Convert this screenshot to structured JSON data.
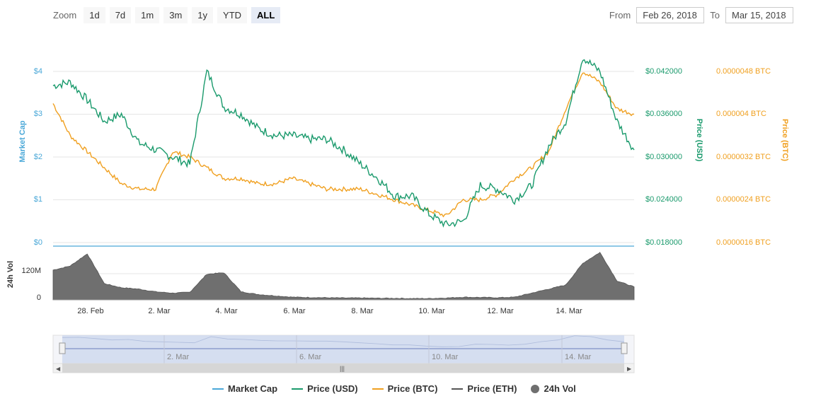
{
  "toolbar": {
    "zoom_label": "Zoom",
    "zoom_buttons": [
      "1d",
      "7d",
      "1m",
      "3m",
      "1y",
      "YTD",
      "ALL"
    ],
    "active_zoom": "ALL",
    "from_label": "From",
    "from_value": "Feb 26, 2018",
    "to_label": "To",
    "to_value": "Mar 15, 2018"
  },
  "colors": {
    "market_cap": "#4aa8d8",
    "price_usd": "#1a9a6c",
    "price_btc": "#f0a020",
    "price_eth": "#555555",
    "volume": "#6f6f6f"
  },
  "chart_data": {
    "type": "line",
    "x_axis": {
      "tick_labels": [
        "28. Feb",
        "2. Mar",
        "4. Mar",
        "6. Mar",
        "8. Mar",
        "10. Mar",
        "12. Mar",
        "14. Mar"
      ],
      "range": [
        "2018-02-26",
        "2018-03-15"
      ]
    },
    "market_cap_axis": {
      "label": "Market Cap",
      "ticks": [
        "$0",
        "$1",
        "$2",
        "$3",
        "$4"
      ]
    },
    "usd_axis": {
      "label": "Price (USD)",
      "ticks": [
        "$0.018000",
        "$0.024000",
        "$0.030000",
        "$0.036000",
        "$0.042000"
      ],
      "range": [
        0.018,
        0.042
      ]
    },
    "btc_axis": {
      "label": "Price (BTC)",
      "ticks": [
        "0.0000016 BTC",
        "0.0000024 BTC",
        "0.0000032 BTC",
        "0.000004 BTC",
        "0.0000048 BTC"
      ],
      "range": [
        1.6e-06,
        4.8e-06
      ]
    },
    "volume_axis": {
      "label": "24h Vol",
      "ticks": [
        "0",
        "120M"
      ]
    },
    "series": [
      {
        "name": "Price (USD)",
        "x": [
          "2018-02-26",
          "2018-02-26T12",
          "2018-02-27",
          "2018-02-27T12",
          "2018-02-28",
          "2018-02-28T12",
          "2018-03-01",
          "2018-03-01T12",
          "2018-03-02",
          "2018-03-02T12",
          "2018-03-03",
          "2018-03-03T12",
          "2018-03-04",
          "2018-03-04T12",
          "2018-03-05",
          "2018-03-05T12",
          "2018-03-06",
          "2018-03-06T12",
          "2018-03-07",
          "2018-03-07T12",
          "2018-03-08",
          "2018-03-08T12",
          "2018-03-09",
          "2018-03-09T12",
          "2018-03-10",
          "2018-03-10T12",
          "2018-03-11",
          "2018-03-11T12",
          "2018-03-12",
          "2018-03-12T12",
          "2018-03-13",
          "2018-03-13T12",
          "2018-03-14",
          "2018-03-14T12",
          "2018-03-15"
        ],
        "values": [
          0.04,
          0.0405,
          0.038,
          0.035,
          0.036,
          0.032,
          0.031,
          0.03,
          0.029,
          0.042,
          0.037,
          0.036,
          0.034,
          0.033,
          0.033,
          0.0325,
          0.0325,
          0.031,
          0.029,
          0.027,
          0.0245,
          0.0245,
          0.022,
          0.0205,
          0.021,
          0.026,
          0.0255,
          0.024,
          0.026,
          0.0315,
          0.035,
          0.044,
          0.042,
          0.035,
          0.031
        ]
      },
      {
        "name": "Price (BTC)",
        "x": [
          "2018-02-26",
          "2018-02-26T12",
          "2018-02-27",
          "2018-02-27T12",
          "2018-02-28",
          "2018-02-28T12",
          "2018-03-01",
          "2018-03-01T12",
          "2018-03-02",
          "2018-03-02T12",
          "2018-03-03",
          "2018-03-03T12",
          "2018-03-04",
          "2018-03-04T12",
          "2018-03-05",
          "2018-03-05T12",
          "2018-03-06",
          "2018-03-06T12",
          "2018-03-07",
          "2018-03-07T12",
          "2018-03-08",
          "2018-03-08T12",
          "2018-03-09",
          "2018-03-09T12",
          "2018-03-10",
          "2018-03-10T12",
          "2018-03-11",
          "2018-03-11T12",
          "2018-03-12",
          "2018-03-12T12",
          "2018-03-13",
          "2018-03-13T12",
          "2018-03-14",
          "2018-03-14T12",
          "2018-03-15"
        ],
        "values": [
          4.2e-06,
          3.6e-06,
          3.3e-06,
          3e-06,
          2.7e-06,
          2.6e-06,
          2.6e-06,
          3.3e-06,
          3.2e-06,
          3e-06,
          2.8e-06,
          2.8e-06,
          2.7e-06,
          2.7e-06,
          2.8e-06,
          2.7e-06,
          2.6e-06,
          2.6e-06,
          2.6e-06,
          2.5e-06,
          2.4e-06,
          2.3e-06,
          2.2e-06,
          2.1e-06,
          2.4e-06,
          2.4e-06,
          2.5e-06,
          2.8e-06,
          3e-06,
          3.3e-06,
          4.1e-06,
          4.8e-06,
          4.6e-06,
          4.1e-06,
          4e-06
        ]
      },
      {
        "name": "24h Vol",
        "x": [
          "2018-02-26",
          "2018-02-26T12",
          "2018-02-27",
          "2018-02-27T12",
          "2018-02-28",
          "2018-02-28T12",
          "2018-03-01",
          "2018-03-01T12",
          "2018-03-02",
          "2018-03-02T12",
          "2018-03-03",
          "2018-03-03T12",
          "2018-03-04",
          "2018-03-04T12",
          "2018-03-05",
          "2018-03-05T12",
          "2018-03-06",
          "2018-03-06T12",
          "2018-03-07",
          "2018-03-07T12",
          "2018-03-08",
          "2018-03-08T12",
          "2018-03-09",
          "2018-03-09T12",
          "2018-03-10",
          "2018-03-10T12",
          "2018-03-11",
          "2018-03-11T12",
          "2018-03-12",
          "2018-03-12T12",
          "2018-03-13",
          "2018-03-13T12",
          "2018-03-14",
          "2018-03-14T12",
          "2018-03-15"
        ],
        "values": [
          110000000,
          125000000,
          170000000,
          60000000,
          45000000,
          40000000,
          30000000,
          25000000,
          28000000,
          95000000,
          100000000,
          30000000,
          20000000,
          15000000,
          10000000,
          9000000,
          8000000,
          7000000,
          7000000,
          6000000,
          6000000,
          5000000,
          5000000,
          7000000,
          10000000,
          9000000,
          8000000,
          10000000,
          25000000,
          40000000,
          55000000,
          135000000,
          175000000,
          70000000,
          48000000
        ]
      }
    ]
  },
  "navigator": {
    "tick_labels": [
      "2. Mar",
      "6. Mar",
      "10. Mar",
      "14. Mar"
    ]
  },
  "legend": {
    "items": [
      {
        "label": "Market Cap"
      },
      {
        "label": "Price (USD)"
      },
      {
        "label": "Price (BTC)"
      },
      {
        "label": "Price (ETH)"
      },
      {
        "label": "24h Vol"
      }
    ]
  }
}
